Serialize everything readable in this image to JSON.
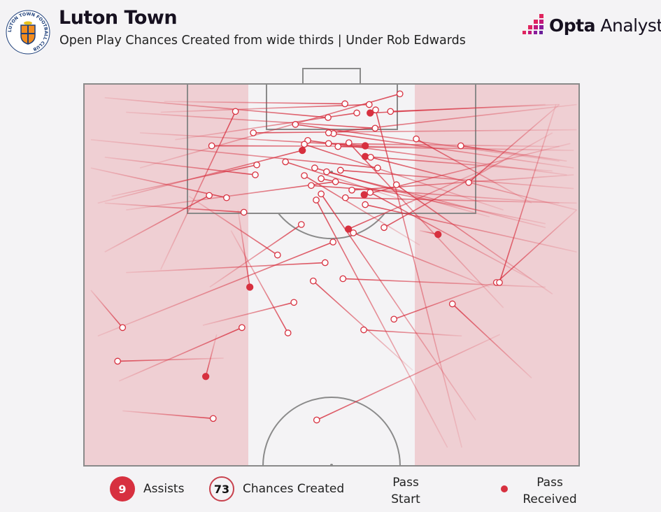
{
  "header": {
    "title": "Luton Town",
    "subtitle": "Open Play Chances Created from wide thirds | Under Rob Edwards",
    "crest_text": "LUTON TOWN FOOTBALL CLUB",
    "brand_logo": "Opta Analyst"
  },
  "legend": {
    "assists_count": "9",
    "assists_label": "Assists",
    "chances_count": "73",
    "chances_label": "Chances Created",
    "pass_start_line1": "Pass",
    "pass_start_line2": "Start",
    "pass_received_line1": "Pass",
    "pass_received_line2": "Received"
  },
  "colors": {
    "background": "#f4f3f5",
    "wide_third_fill": "#efcfd3",
    "pass_line": "#d7303f",
    "assist_marker": "#d7303f",
    "pitch_lines": "#8a8a8a"
  },
  "chart_data": {
    "type": "scatter",
    "subtype": "pass-map",
    "pitch_view": "attacking half, goal at top",
    "x_meaning": "pitch width, 0 (left touchline) to 100 (right touchline)",
    "y_meaning": "distance from goal line as % of pitch length, 0 to 50 (halfway line)",
    "xlim": [
      0,
      100
    ],
    "ylim": [
      0,
      50
    ],
    "highlighted_zones": [
      "left third",
      "right third"
    ],
    "passes": [
      {
        "start": [
          11.3,
          11
        ],
        "end": [
          63.8,
          1.3
        ],
        "assist": false
      },
      {
        "start": [
          16.2,
          2.3
        ],
        "end": [
          52.7,
          2.6
        ],
        "assist": false
      },
      {
        "start": [
          15.5,
          3.7
        ],
        "end": [
          57.6,
          2.7
        ],
        "assist": false
      },
      {
        "start": [
          76.3,
          47.6
        ],
        "end": [
          58.9,
          3.4
        ],
        "assist": false
      },
      {
        "start": [
          96,
          2.7
        ],
        "end": [
          61.9,
          3.6
        ],
        "assist": false
      },
      {
        "start": [
          18.4,
          7.3
        ],
        "end": [
          55.1,
          3.8
        ],
        "assist": false
      },
      {
        "start": [
          93.2,
          2.7
        ],
        "end": [
          57.8,
          3.8
        ],
        "assist": true
      },
      {
        "start": [
          4.2,
          1.8
        ],
        "end": [
          49.3,
          4.4
        ],
        "assist": false
      },
      {
        "start": [
          96,
          10.1
        ],
        "end": [
          42.7,
          5.3
        ],
        "assist": false
      },
      {
        "start": [
          8.5,
          3.7
        ],
        "end": [
          58.8,
          5.8
        ],
        "assist": false
      },
      {
        "start": [
          15.5,
          24.3
        ],
        "end": [
          30.6,
          3.6
        ],
        "assist": false
      },
      {
        "start": [
          98.9,
          11
        ],
        "end": [
          50.4,
          6.5
        ],
        "assist": false
      },
      {
        "start": [
          99.5,
          6
        ],
        "end": [
          34.2,
          6.4
        ],
        "assist": false
      },
      {
        "start": [
          90.4,
          15.6
        ],
        "end": [
          67.1,
          7.2
        ],
        "assist": false
      },
      {
        "start": [
          76.3,
          8.2
        ],
        "end": [
          25.8,
          8.1
        ],
        "assist": false
      },
      {
        "start": [
          97.5,
          10.1
        ],
        "end": [
          76.1,
          8.1
        ],
        "assist": false
      },
      {
        "start": [
          97.5,
          11.9
        ],
        "end": [
          45.2,
          7.4
        ],
        "assist": false
      },
      {
        "start": [
          84.7,
          16.5
        ],
        "end": [
          44.5,
          7.9
        ],
        "assist": false
      },
      {
        "start": [
          2.8,
          15.6
        ],
        "end": [
          44.1,
          8.7
        ],
        "assist": true
      },
      {
        "start": [
          96,
          8.2
        ],
        "end": [
          49.4,
          7.8
        ],
        "assist": false
      },
      {
        "start": [
          98.9,
          8.7
        ],
        "end": [
          51.3,
          8.2
        ],
        "assist": false
      },
      {
        "start": [
          84.7,
          29.3
        ],
        "end": [
          53.5,
          7.7
        ],
        "assist": false
      },
      {
        "start": [
          11.3,
          6.4
        ],
        "end": [
          56.8,
          8.1
        ],
        "assist": true
      },
      {
        "start": [
          94.6,
          11.4
        ],
        "end": [
          56.8,
          9.5
        ],
        "assist": true
      },
      {
        "start": [
          99.5,
          16.5
        ],
        "end": [
          57.9,
          9.6
        ],
        "assist": false
      },
      {
        "start": [
          5.6,
          14.7
        ],
        "end": [
          34.9,
          10.6
        ],
        "assist": false
      },
      {
        "start": [
          66.4,
          15.6
        ],
        "end": [
          40.7,
          10.2
        ],
        "assist": false
      },
      {
        "start": [
          4.2,
          9.6
        ],
        "end": [
          34.6,
          11.9
        ],
        "assist": false
      },
      {
        "start": [
          81.9,
          17.4
        ],
        "end": [
          46.6,
          11
        ],
        "assist": false
      },
      {
        "start": [
          93.2,
          18.8
        ],
        "end": [
          49,
          11.5
        ],
        "assist": false
      },
      {
        "start": [
          98.9,
          13.7
        ],
        "end": [
          51.8,
          11.3
        ],
        "assist": false
      },
      {
        "start": [
          67.8,
          21.1
        ],
        "end": [
          44.5,
          12
        ],
        "assist": false
      },
      {
        "start": [
          93.2,
          18.3
        ],
        "end": [
          47.9,
          12.4
        ],
        "assist": false
      },
      {
        "start": [
          94.6,
          27.5
        ],
        "end": [
          63.1,
          13.2
        ],
        "assist": false
      },
      {
        "start": [
          96,
          2.7
        ],
        "end": [
          77.7,
          12.9
        ],
        "assist": false
      },
      {
        "start": [
          4.2,
          22
        ],
        "end": [
          25.3,
          14.6
        ],
        "assist": false
      },
      {
        "start": [
          1.4,
          11
        ],
        "end": [
          28.8,
          14.9
        ],
        "assist": false
      },
      {
        "start": [
          98.9,
          11.9
        ],
        "end": [
          54.1,
          13.9
        ],
        "assist": false
      },
      {
        "start": [
          90.4,
          25.6
        ],
        "end": [
          57.8,
          14.2
        ],
        "assist": false
      },
      {
        "start": [
          98.2,
          7.8
        ],
        "end": [
          56.6,
          14.5
        ],
        "assist": true
      },
      {
        "start": [
          79.1,
          44
        ],
        "end": [
          47.9,
          14.4
        ],
        "assist": false
      },
      {
        "start": [
          73.4,
          47.6
        ],
        "end": [
          46.9,
          15.2
        ],
        "assist": false
      },
      {
        "start": [
          99.5,
          15.6
        ],
        "end": [
          52.8,
          14.9
        ],
        "assist": false
      },
      {
        "start": [
          99.5,
          22
        ],
        "end": [
          56.8,
          15.8
        ],
        "assist": false
      },
      {
        "start": [
          4.2,
          15.6
        ],
        "end": [
          32.3,
          16.8
        ],
        "assist": false
      },
      {
        "start": [
          25.4,
          26.6
        ],
        "end": [
          43.9,
          18.4
        ],
        "assist": false
      },
      {
        "start": [
          84.7,
          10.1
        ],
        "end": [
          53.4,
          19
        ],
        "assist": true
      },
      {
        "start": [
          81.9,
          26.6
        ],
        "end": [
          54.4,
          19.5
        ],
        "assist": false
      },
      {
        "start": [
          94.6,
          6.4
        ],
        "end": [
          60.6,
          18.8
        ],
        "assist": false
      },
      {
        "start": [
          67.8,
          19.2
        ],
        "end": [
          71.5,
          19.7
        ],
        "assist": true
      },
      {
        "start": [
          2.8,
          33
        ],
        "end": [
          50.3,
          20.7
        ],
        "assist": false
      },
      {
        "start": [
          21.2,
          14.7
        ],
        "end": [
          39.1,
          22.4
        ],
        "assist": false
      },
      {
        "start": [
          8.5,
          24.7
        ],
        "end": [
          48.7,
          23.4
        ],
        "assist": false
      },
      {
        "start": [
          31.1,
          16.5
        ],
        "end": [
          33.5,
          26.6
        ],
        "assist": true
      },
      {
        "start": [
          66.4,
          37.5
        ],
        "end": [
          46.3,
          25.8
        ],
        "assist": false
      },
      {
        "start": [
          93.2,
          26.6
        ],
        "end": [
          52.3,
          25.5
        ],
        "assist": false
      },
      {
        "start": [
          99.5,
          16.5
        ],
        "end": [
          83.3,
          26
        ],
        "assist": false
      },
      {
        "start": [
          95.3,
          2.7
        ],
        "end": [
          83.9,
          26
        ],
        "assist": false
      },
      {
        "start": [
          24,
          31.6
        ],
        "end": [
          42.4,
          28.6
        ],
        "assist": false
      },
      {
        "start": [
          1.4,
          27
        ],
        "end": [
          7.8,
          31.9
        ],
        "assist": false
      },
      {
        "start": [
          7.1,
          38.9
        ],
        "end": [
          31.9,
          31.9
        ],
        "assist": false
      },
      {
        "start": [
          29.7,
          19.2
        ],
        "end": [
          41.2,
          32.6
        ],
        "assist": false
      },
      {
        "start": [
          76.3,
          33
        ],
        "end": [
          56.5,
          32.2
        ],
        "assist": false
      },
      {
        "start": [
          84.7,
          25.6
        ],
        "end": [
          62.6,
          30.8
        ],
        "assist": false
      },
      {
        "start": [
          90.4,
          38.5
        ],
        "end": [
          74.4,
          28.8
        ],
        "assist": false
      },
      {
        "start": [
          28.2,
          35.9
        ],
        "end": [
          6.8,
          36.3
        ],
        "assist": false
      },
      {
        "start": [
          26.8,
          32.8
        ],
        "end": [
          24.6,
          38.3
        ],
        "assist": true
      },
      {
        "start": [
          7.8,
          42.8
        ],
        "end": [
          26.1,
          43.8
        ],
        "assist": false
      },
      {
        "start": [
          84,
          32.8
        ],
        "end": [
          47,
          44
        ],
        "assist": false
      },
      {
        "start": [
          99.5,
          2.7
        ],
        "end": [
          49.4,
          6.4
        ],
        "assist": false
      },
      {
        "start": [
          1.4,
          7.3
        ],
        "end": [
          59.3,
          11
        ],
        "assist": false
      },
      {
        "start": [
          8.5,
          16.5
        ],
        "end": [
          50.8,
          12.8
        ],
        "assist": false
      },
      {
        "start": [
          96,
          15.6
        ],
        "end": [
          45.9,
          13.3
        ],
        "assist": false
      }
    ]
  }
}
